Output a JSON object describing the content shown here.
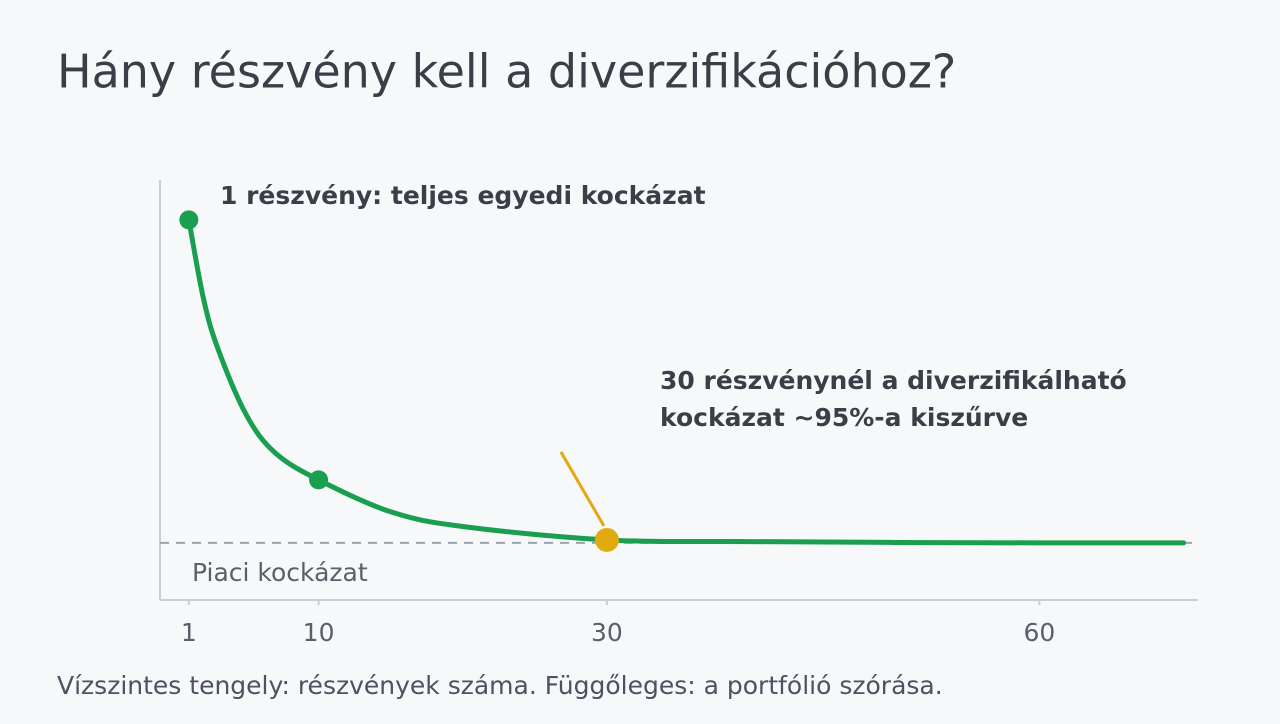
{
  "chart_data": {
    "type": "line",
    "title": "Hány részvény kell a diverzifikációhoz?",
    "caption": "Vízszintes tengely: részvények száma. Függőleges: a portfólió szórása.",
    "x": [
      1,
      2,
      3,
      5,
      7,
      10,
      15,
      20,
      30,
      40,
      50,
      60,
      70
    ],
    "series": [
      {
        "color": "#1a9e4f",
        "values": [
          90.5,
          72,
          60,
          44,
          35,
          28.6,
          21,
          17.5,
          14.3,
          13.9,
          13.7,
          13.6,
          13.6
        ]
      }
    ],
    "markers": [
      {
        "index": 0,
        "color": "#1a9e4f"
      },
      {
        "index": 5,
        "color": "#1a9e4f"
      },
      {
        "index": 8,
        "color": "#e0aa10"
      }
    ],
    "reference_line": {
      "value": 13.6,
      "label": "Piaci kockázat",
      "color": "#9aa3ad"
    },
    "annotations": [
      {
        "lines": [
          "1 részvény: teljes egyedi kockázat"
        ]
      },
      {
        "lines": [
          "30 részvénynél a diverzifikálható",
          "kockázat ~95%-a kiszűrve"
        ],
        "pointer_color": "#e0aa10"
      }
    ],
    "xlim": [
      -1,
      71
    ],
    "xticks": [
      1,
      10,
      30,
      60
    ],
    "ylim": [
      0,
      100
    ],
    "grid": false
  }
}
